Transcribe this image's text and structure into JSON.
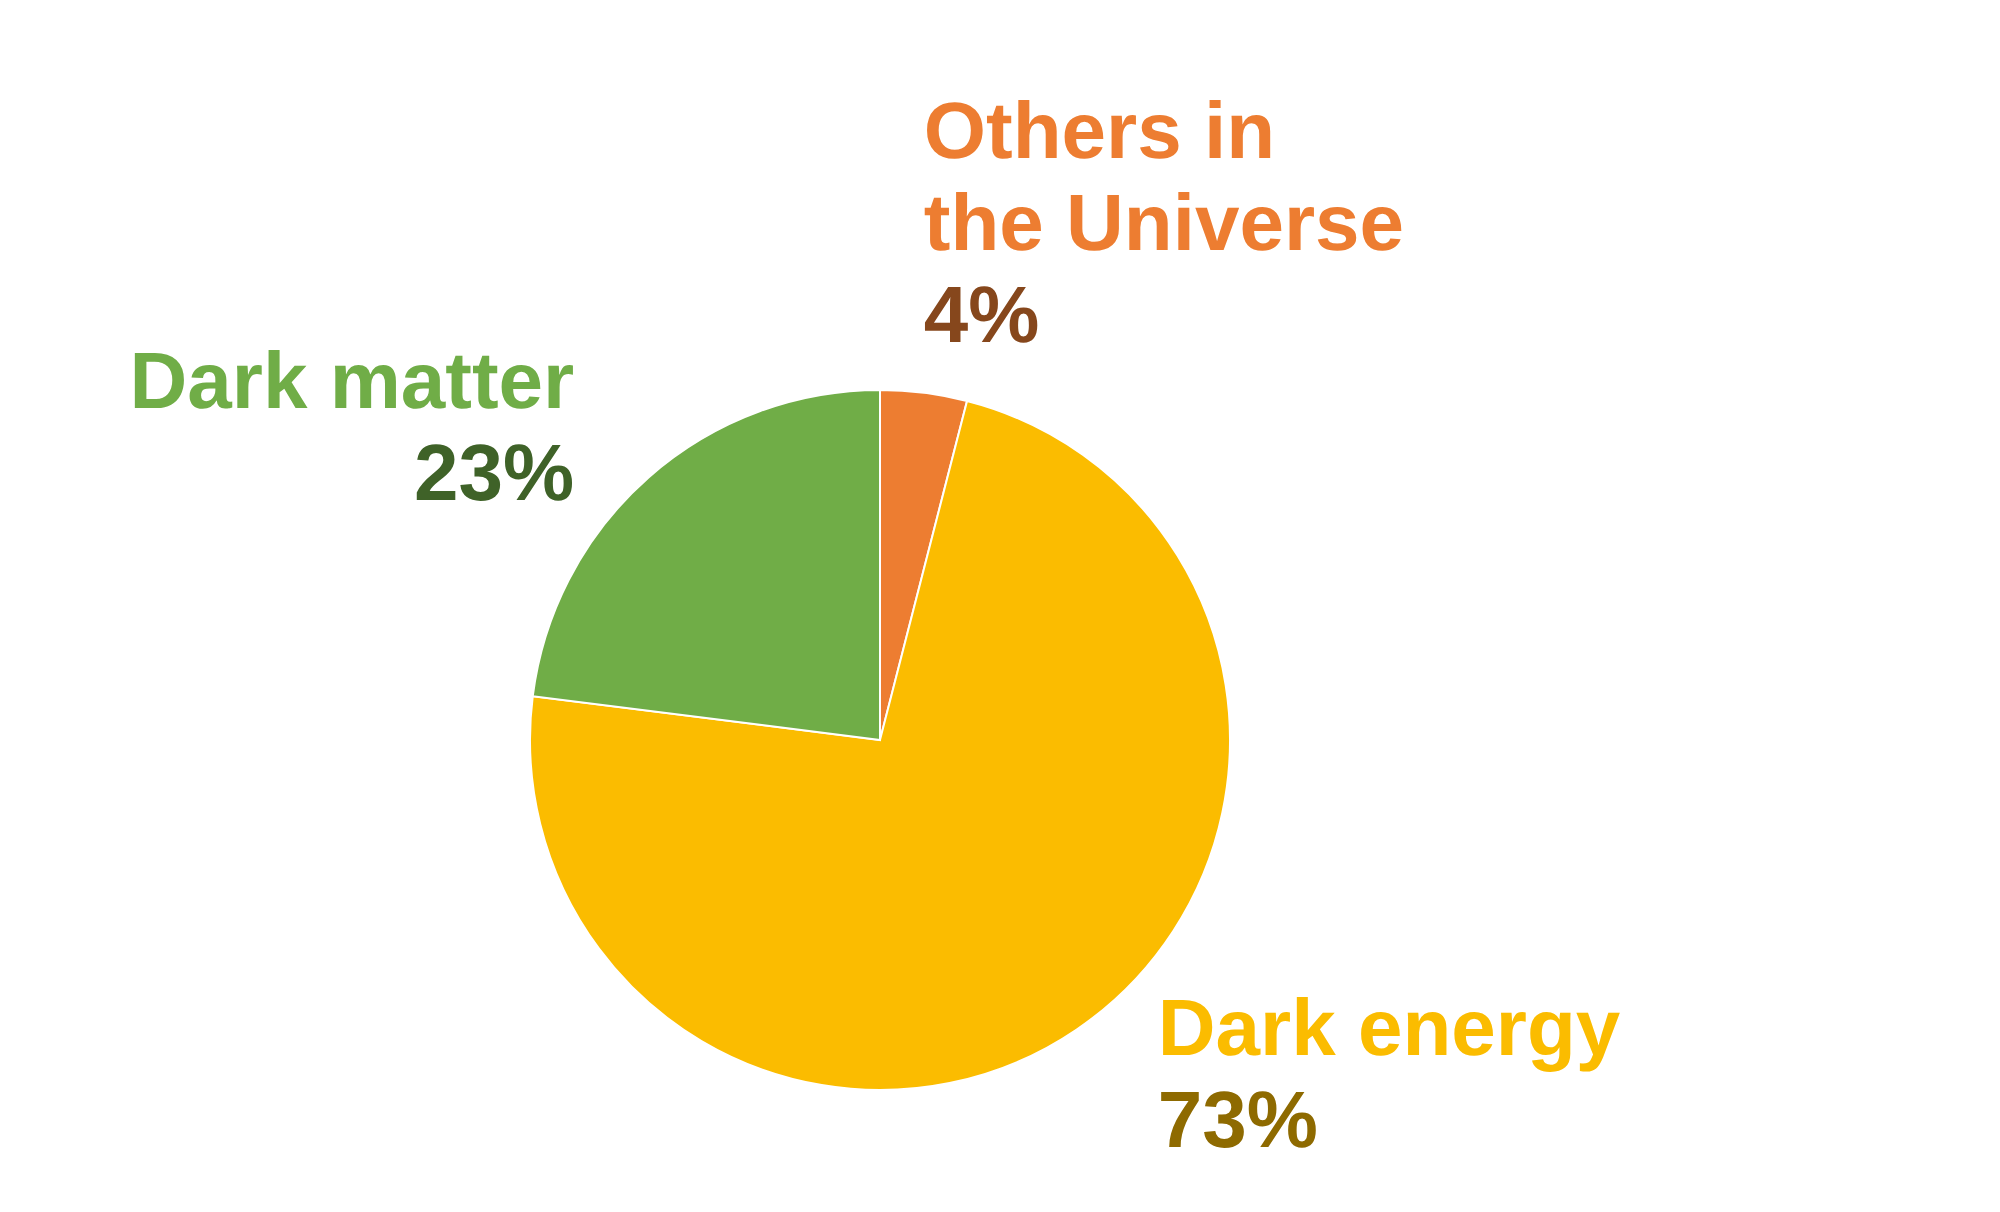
{
  "chart_data": {
    "type": "pie",
    "categories": [
      "Others in the Universe",
      "Dark energy",
      "Dark matter"
    ],
    "values": [
      4,
      73,
      23
    ],
    "value_labels": [
      "4%",
      "73%",
      "23%"
    ],
    "colors": [
      "#ed7d31",
      "#fbbc00",
      "#70ad47"
    ]
  }
}
